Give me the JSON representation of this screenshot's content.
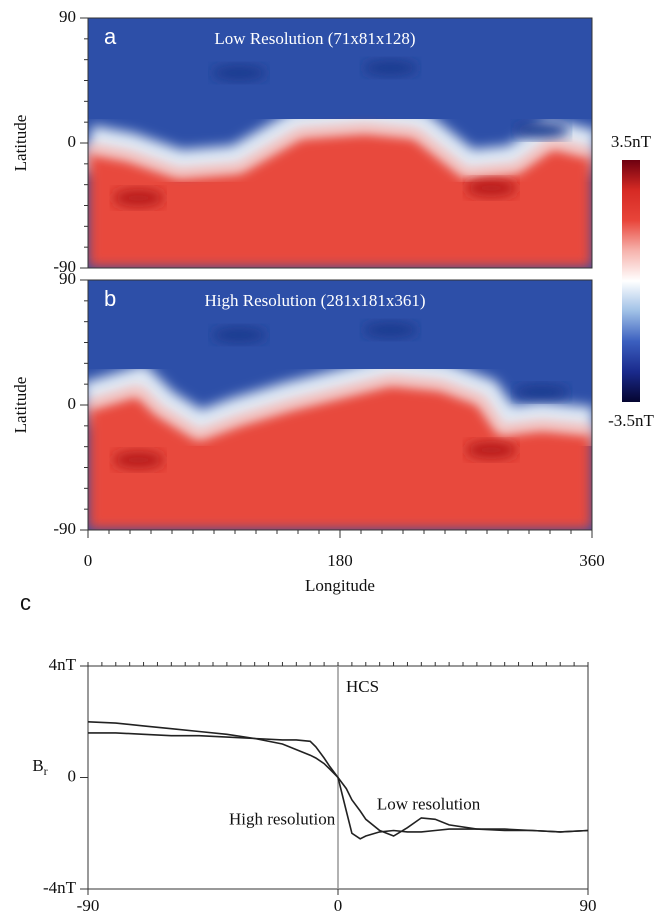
{
  "chart_data": [
    {
      "type": "heatmap",
      "panel": "a",
      "title": "Low Resolution (71x81x128)",
      "ylabel": "Latitude",
      "xlim": [
        0,
        360
      ],
      "ylim": [
        -90,
        90
      ],
      "yticks": [
        -90,
        0,
        90
      ]
    },
    {
      "type": "heatmap",
      "panel": "b",
      "title": "High Resolution (281x181x361)",
      "ylabel": "Latitude",
      "xlabel": "Longitude",
      "xlim": [
        0,
        360
      ],
      "ylim": [
        -90,
        90
      ],
      "xticks": [
        0,
        180,
        360
      ],
      "yticks": [
        -90,
        0,
        90
      ]
    },
    {
      "type": "line",
      "panel": "c",
      "ylabel": "B",
      "ylabel_sub": "r",
      "xlim": [
        -90,
        90
      ],
      "ylim": [
        -4,
        4
      ],
      "xticks": [
        -90,
        0,
        90
      ],
      "yticks": [
        {
          "value": -4,
          "label": "-4nT"
        },
        0,
        {
          "value": 4,
          "label": "4nT"
        }
      ],
      "vline": {
        "x": 0,
        "label": "HCS"
      },
      "x": [
        -90,
        -80,
        -70,
        -60,
        -50,
        -40,
        -30,
        -20,
        -15,
        -10,
        -8,
        -5,
        -3,
        0,
        3,
        5,
        8,
        10,
        15,
        20,
        25,
        30,
        35,
        40,
        50,
        60,
        70,
        80,
        90
      ],
      "series": [
        {
          "name": "Low resolution",
          "color": "#222222",
          "values": [
            2.0,
            1.95,
            1.85,
            1.75,
            1.65,
            1.55,
            1.4,
            1.2,
            1.0,
            0.8,
            0.7,
            0.5,
            0.3,
            0.0,
            -0.4,
            -0.8,
            -1.2,
            -1.5,
            -1.9,
            -2.1,
            -1.8,
            -1.45,
            -1.5,
            -1.7,
            -1.85,
            -1.85,
            -1.9,
            -1.95,
            -1.9
          ]
        },
        {
          "name": "High resolution",
          "color": "#222222",
          "values": [
            1.6,
            1.6,
            1.55,
            1.5,
            1.5,
            1.45,
            1.4,
            1.35,
            1.35,
            1.3,
            1.1,
            0.7,
            0.4,
            0.0,
            -1.2,
            -2.0,
            -2.2,
            -2.1,
            -1.95,
            -1.9,
            -1.95,
            -1.95,
            -1.9,
            -1.85,
            -1.85,
            -1.9,
            -1.9,
            -1.95,
            -1.9
          ]
        }
      ]
    }
  ],
  "colorbar": {
    "clim": [
      -3.5,
      3.5
    ],
    "ticks": [
      {
        "value": -3.5,
        "label": "-3.5nT"
      },
      {
        "value": 3.5,
        "label": "3.5nT"
      }
    ],
    "colors": [
      "#050530",
      "#1a2a8c",
      "#3b5fbf",
      "#9fc0e6",
      "#ffffff",
      "#f6b3ad",
      "#e8453a",
      "#d62a24",
      "#6e0010"
    ]
  }
}
